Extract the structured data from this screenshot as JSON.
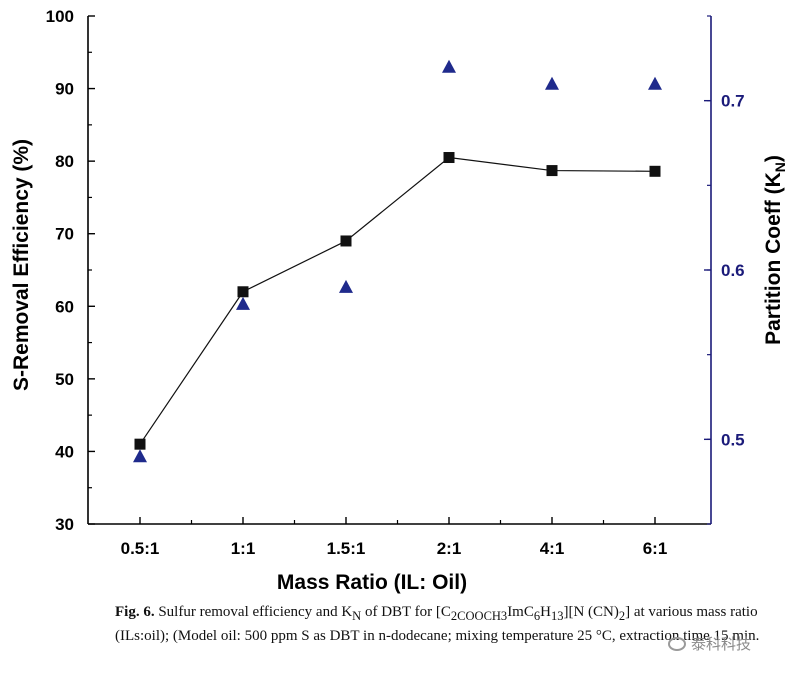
{
  "chart_data": {
    "type": "scatter",
    "categories": [
      "0.5:1",
      "1:1",
      "1.5:1",
      "2:1",
      "4:1",
      "6:1"
    ],
    "xlabel": "Mass Ratio (IL: Oil)",
    "ylabel_left": "S-Removal Efficiency (%)",
    "ylabel_right": "Partition Coeff (K",
    "ylabel_right_sub": "N",
    "ylim_left": [
      30,
      100
    ],
    "ylim_right": [
      0.45,
      0.75
    ],
    "left_ticks": [
      30,
      40,
      50,
      60,
      70,
      80,
      90,
      100
    ],
    "right_ticks": [
      "0.5",
      "0.6",
      "0.7"
    ],
    "series": [
      {
        "axis": "left",
        "marker": "square",
        "line": true,
        "color": "#111111",
        "values": [
          41.0,
          62.0,
          69.0,
          80.5,
          78.7,
          78.6
        ]
      },
      {
        "axis": "right",
        "marker": "triangle",
        "line": false,
        "color": "#1f2a8c",
        "values": [
          0.49,
          0.58,
          0.59,
          0.72,
          0.71,
          0.71
        ]
      }
    ],
    "right_axis_color": "#1b1b7a",
    "grid": false
  },
  "caption": {
    "label": "Fig. 6.",
    "text": " Sulfur removal efficiency and K",
    "kn_sub": "N",
    "text2": " of DBT for [C",
    "sub1": "2COOCH3",
    "text3": "ImC",
    "sub2": "6",
    "text4": "H",
    "sub3": "13",
    "text5": "][N (CN)",
    "sub4": "2",
    "text6": "] at various mass ratio (ILs:oil); (Model oil: 500 ppm S as DBT in n-dodecane; mixing temperature 25 °C, extraction time 15 min."
  },
  "watermark": {
    "text": "泰科科技",
    "icon": "wechat-icon"
  }
}
